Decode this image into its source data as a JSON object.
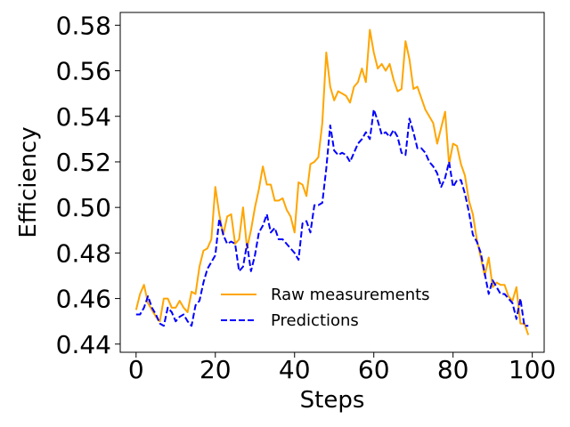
{
  "chart_data": {
    "type": "line",
    "xlabel": "Steps",
    "ylabel": "Efficiency",
    "xlim": [
      -4,
      103
    ],
    "ylim": [
      0.4364,
      0.5856
    ],
    "xticks": [
      0,
      20,
      40,
      60,
      80,
      100
    ],
    "yticks": [
      0.44,
      0.46,
      0.48,
      0.5,
      0.52,
      0.54,
      0.56,
      0.58
    ],
    "grid": false,
    "legend_position": "lower-center",
    "series": [
      {
        "name": "Raw measurements",
        "color": "#FFA500",
        "style": "solid",
        "x": [
          0,
          1,
          2,
          3,
          4,
          5,
          6,
          7,
          8,
          9,
          10,
          11,
          12,
          13,
          14,
          15,
          16,
          17,
          18,
          19,
          20,
          21,
          22,
          23,
          24,
          25,
          26,
          27,
          28,
          29,
          30,
          31,
          32,
          33,
          34,
          35,
          36,
          37,
          38,
          39,
          40,
          41,
          42,
          43,
          44,
          45,
          46,
          47,
          48,
          49,
          50,
          51,
          52,
          53,
          54,
          55,
          56,
          57,
          58,
          59,
          60,
          61,
          62,
          63,
          64,
          65,
          66,
          67,
          68,
          69,
          70,
          71,
          72,
          73,
          74,
          75,
          76,
          77,
          78,
          79,
          80,
          81,
          82,
          83,
          84,
          85,
          86,
          87,
          88,
          89,
          90,
          91,
          92,
          93,
          94,
          95,
          96,
          97,
          98,
          99
        ],
        "values": [
          0.455,
          0.462,
          0.466,
          0.458,
          0.455,
          0.452,
          0.45,
          0.46,
          0.46,
          0.456,
          0.456,
          0.459,
          0.456,
          0.454,
          0.463,
          0.462,
          0.474,
          0.481,
          0.482,
          0.486,
          0.509,
          0.497,
          0.488,
          0.496,
          0.497,
          0.484,
          0.486,
          0.5,
          0.482,
          0.49,
          0.5,
          0.508,
          0.518,
          0.51,
          0.51,
          0.503,
          0.503,
          0.504,
          0.499,
          0.496,
          0.489,
          0.511,
          0.51,
          0.505,
          0.519,
          0.52,
          0.522,
          0.537,
          0.568,
          0.553,
          0.547,
          0.551,
          0.55,
          0.549,
          0.546,
          0.553,
          0.555,
          0.561,
          0.555,
          0.578,
          0.568,
          0.561,
          0.563,
          0.56,
          0.563,
          0.556,
          0.551,
          0.552,
          0.573,
          0.565,
          0.552,
          0.553,
          0.548,
          0.543,
          0.54,
          0.537,
          0.528,
          0.535,
          0.542,
          0.519,
          0.528,
          0.527,
          0.519,
          0.514,
          0.503,
          0.497,
          0.486,
          0.478,
          0.47,
          0.478,
          0.465,
          0.467,
          0.466,
          0.466,
          0.461,
          0.459,
          0.465,
          0.449,
          0.449,
          0.444
        ]
      },
      {
        "name": "Predictions",
        "color": "#0000FF",
        "style": "dashed",
        "x": [
          0,
          1,
          2,
          3,
          4,
          5,
          6,
          7,
          8,
          9,
          10,
          11,
          12,
          13,
          14,
          15,
          16,
          17,
          18,
          19,
          20,
          21,
          22,
          23,
          24,
          25,
          26,
          27,
          28,
          29,
          30,
          31,
          32,
          33,
          34,
          35,
          36,
          37,
          38,
          39,
          40,
          41,
          42,
          43,
          44,
          45,
          46,
          47,
          48,
          49,
          50,
          51,
          52,
          53,
          54,
          55,
          56,
          57,
          58,
          59,
          60,
          61,
          62,
          63,
          64,
          65,
          66,
          67,
          68,
          69,
          70,
          71,
          72,
          73,
          74,
          75,
          76,
          77,
          78,
          79,
          80,
          81,
          82,
          83,
          84,
          85,
          86,
          87,
          88,
          89,
          90,
          91,
          92,
          93,
          94,
          95,
          96,
          97,
          98,
          99
        ],
        "values": [
          0.453,
          0.453,
          0.456,
          0.461,
          0.456,
          0.453,
          0.449,
          0.448,
          0.456,
          0.454,
          0.45,
          0.452,
          0.453,
          0.45,
          0.448,
          0.457,
          0.459,
          0.467,
          0.473,
          0.476,
          0.479,
          0.495,
          0.488,
          0.484,
          0.485,
          0.484,
          0.472,
          0.474,
          0.484,
          0.472,
          0.479,
          0.489,
          0.492,
          0.497,
          0.489,
          0.491,
          0.486,
          0.486,
          0.484,
          0.482,
          0.48,
          0.477,
          0.493,
          0.494,
          0.489,
          0.501,
          0.501,
          0.502,
          0.517,
          0.536,
          0.525,
          0.523,
          0.524,
          0.523,
          0.52,
          0.524,
          0.528,
          0.53,
          0.533,
          0.53,
          0.543,
          0.538,
          0.532,
          0.533,
          0.531,
          0.534,
          0.531,
          0.524,
          0.523,
          0.539,
          0.533,
          0.526,
          0.526,
          0.524,
          0.52,
          0.518,
          0.515,
          0.509,
          0.513,
          0.52,
          0.509,
          0.512,
          0.512,
          0.506,
          0.498,
          0.488,
          0.485,
          0.48,
          0.471,
          0.462,
          0.468,
          0.465,
          0.462,
          0.462,
          0.46,
          0.458,
          0.451,
          0.46,
          0.448,
          0.448
        ]
      }
    ]
  }
}
